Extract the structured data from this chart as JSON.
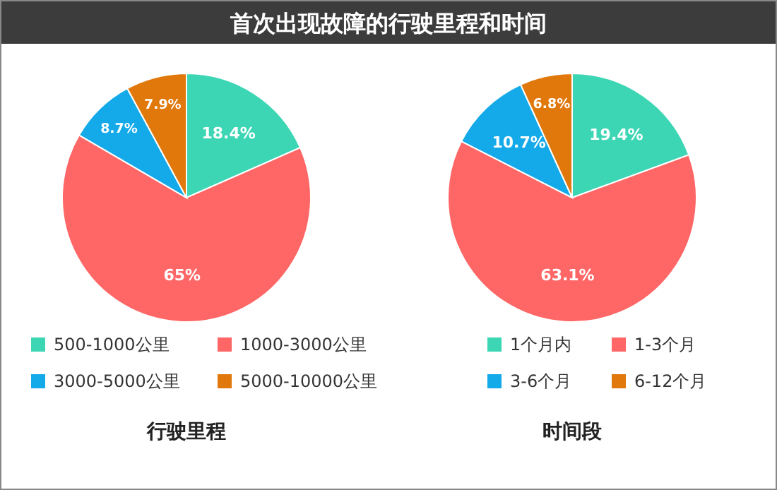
{
  "chart_data": [
    {
      "type": "other",
      "title": "首次出现故障的行驶里程和时间"
    },
    {
      "type": "pie",
      "title": "行驶里程",
      "categories": [
        "500-1000公里",
        "1000-3000公里",
        "3000-5000公里",
        "5000-10000公里"
      ],
      "values": [
        18.4,
        65,
        8.7,
        7.9
      ],
      "value_labels": [
        "18.4%",
        "65%",
        "8.7%",
        "7.9%"
      ],
      "colors": [
        "#3dd6b5",
        "#ff6666",
        "#14a9e9",
        "#e0780c"
      ],
      "legend": "bottom"
    },
    {
      "type": "pie",
      "title": "时间段",
      "categories": [
        "1个月内",
        "1-3个月",
        "3-6个月",
        "6-12个月"
      ],
      "values": [
        19.4,
        63.1,
        10.7,
        6.8
      ],
      "value_labels": [
        "19.4%",
        "63.1%",
        "10.7%",
        "6.8%"
      ],
      "colors": [
        "#3dd6b5",
        "#ff6666",
        "#14a9e9",
        "#e0780c"
      ],
      "legend": "bottom"
    }
  ]
}
